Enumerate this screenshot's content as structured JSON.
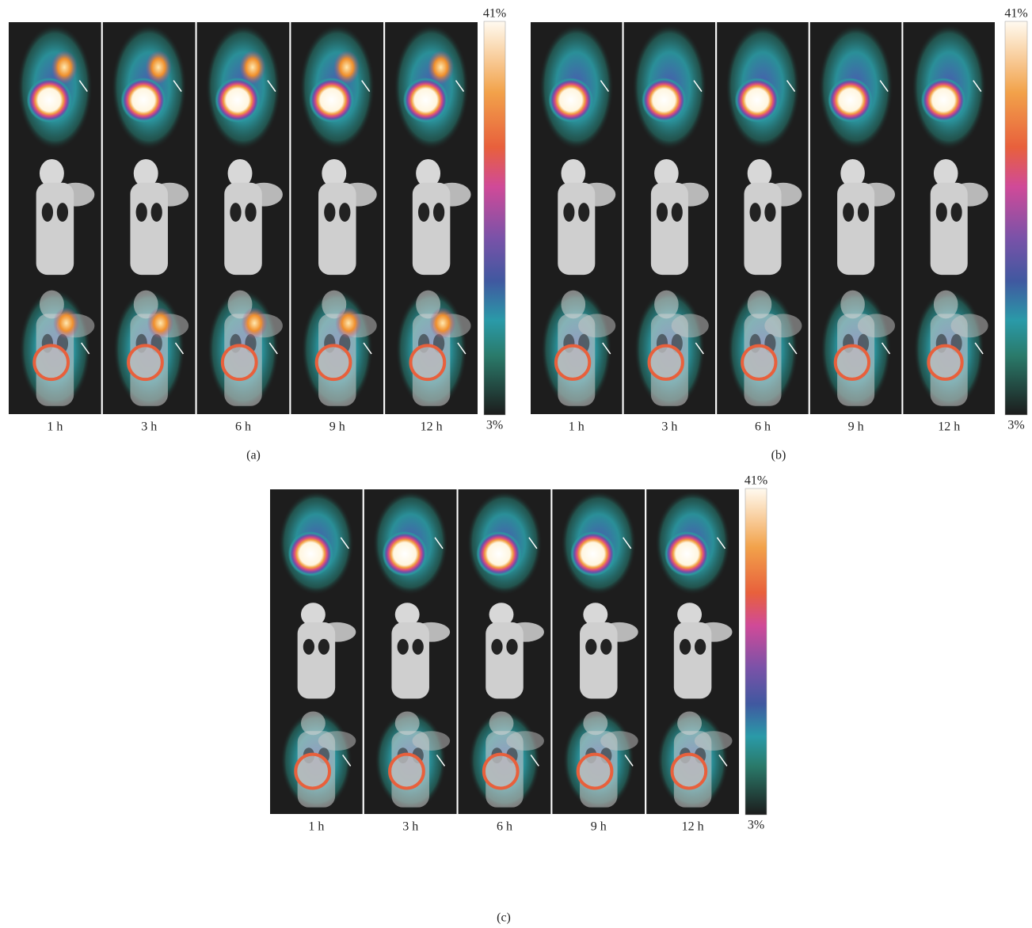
{
  "panels": [
    {
      "label": "(a)",
      "times": [
        "1 h",
        "3 h",
        "6 h",
        "9 h",
        "12 h"
      ],
      "scale_max": "41%",
      "scale_min": "3%"
    },
    {
      "label": "(b)",
      "times": [
        "1 h",
        "3 h",
        "6 h",
        "9 h",
        "12 h"
      ],
      "scale_max": "41%",
      "scale_min": "3%"
    },
    {
      "label": "(c)",
      "times": [
        "1 h",
        "3 h",
        "6 h",
        "9 h",
        "12 h"
      ],
      "scale_max": "41%",
      "scale_min": "3%"
    }
  ]
}
